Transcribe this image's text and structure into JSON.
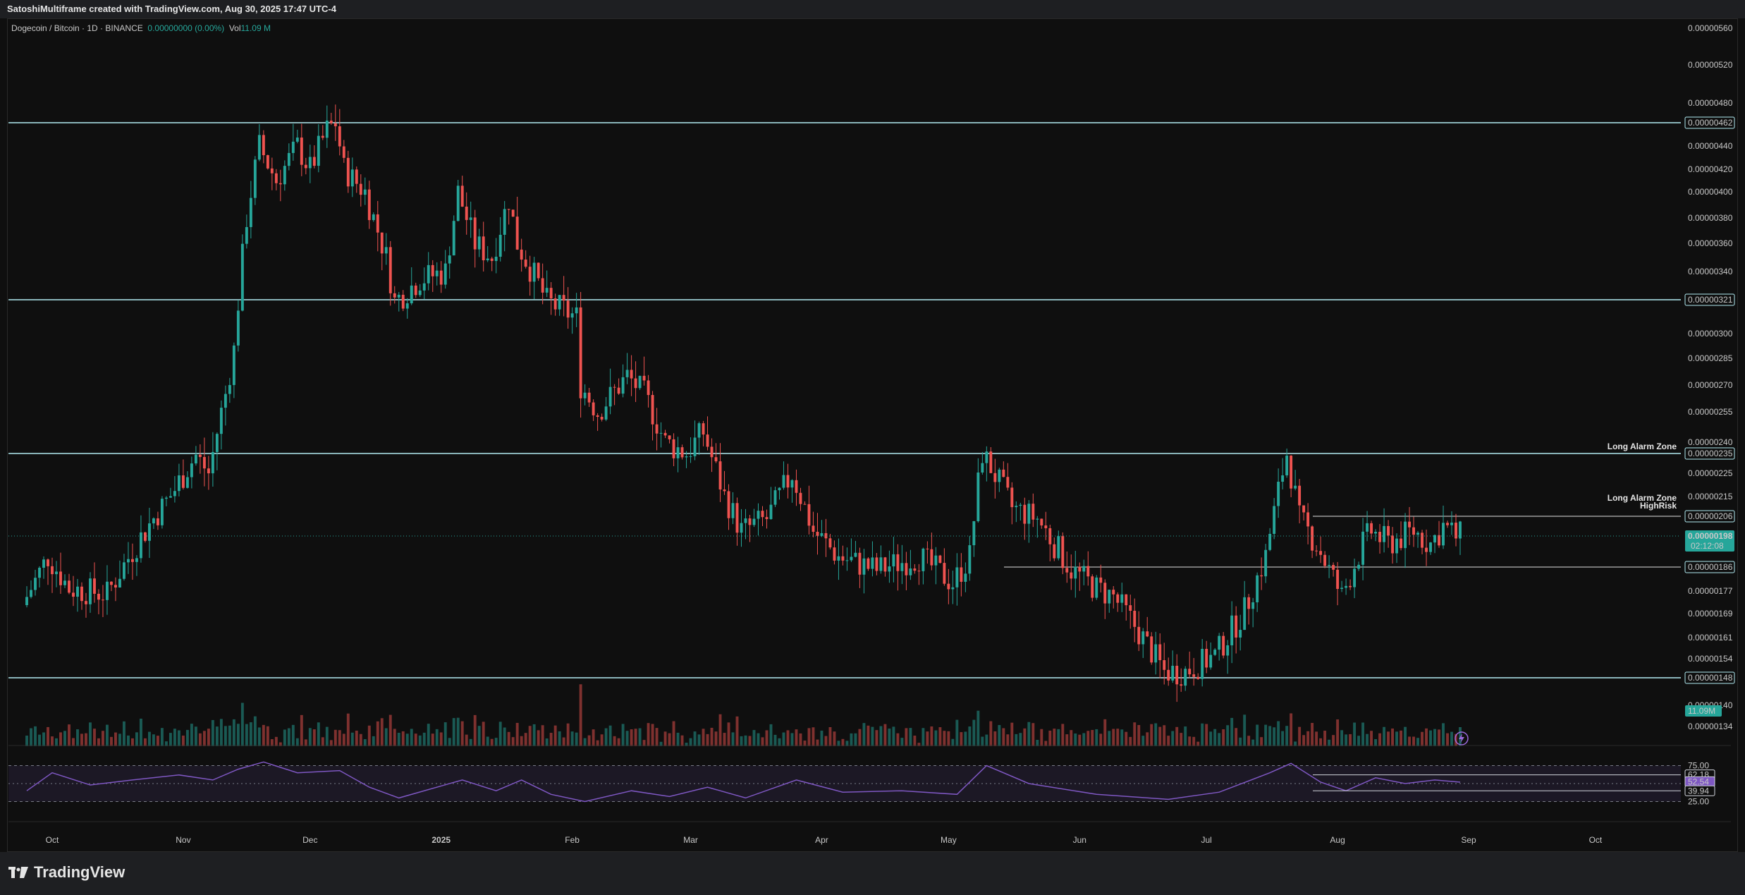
{
  "header": {
    "title": "SatoshiMultiframe created with TradingView.com, Aug 30, 2025 17:47 UTC-4"
  },
  "legend": {
    "symbol": "Dogecoin / Bitcoin · 1D · BINANCE",
    "change": "0.00000000 (0.00%)",
    "vol_label": "Vol",
    "vol_value": "11.09 M"
  },
  "footer": {
    "brand": "TradingView"
  },
  "colors": {
    "up": "#26a69a",
    "down": "#ef5350",
    "level": "#b2ebf2",
    "rsi": "#7e57c2"
  },
  "chart_data": {
    "type": "candlestick",
    "pair": "DOGE/BTC",
    "timeframe": "1D",
    "exchange": "BINANCE",
    "y_axis_ticks": [
      "0.00000560",
      "0.00000520",
      "0.00000480",
      "0.00000440",
      "0.00000420",
      "0.00000400",
      "0.00000380",
      "0.00000360",
      "0.00000340",
      "0.00000300",
      "0.00000285",
      "0.00000270",
      "0.00000255",
      "0.00000240",
      "0.00000225",
      "0.00000215",
      "0.00000177",
      "0.00000169",
      "0.00000161",
      "0.00000154",
      "0.00000140",
      "0.00000134"
    ],
    "x_axis_ticks": [
      "Oct",
      "Nov",
      "Dec",
      "2025",
      "Feb",
      "Mar",
      "Apr",
      "May",
      "Jun",
      "Jul",
      "Aug",
      "Sep",
      "Oct"
    ],
    "horizontal_levels": [
      {
        "price": "0.00000462",
        "value": 4.62e-06,
        "label": ""
      },
      {
        "price": "0.00000321",
        "value": 3.21e-06,
        "label": ""
      },
      {
        "price": "0.00000235",
        "value": 2.35e-06,
        "label": "Long Alarm Zone"
      },
      {
        "price": "0.00000206",
        "value": 2.06e-06,
        "label": "Long Alarm Zone HighRisk",
        "label_lines": [
          "Long Alarm Zone",
          "HighRisk"
        ]
      },
      {
        "price": "0.00000186",
        "value": 1.86e-06,
        "label": ""
      },
      {
        "price": "0.00000148",
        "value": 1.48e-06,
        "label": ""
      }
    ],
    "last_price": {
      "price": "0.00000198",
      "countdown": "02:12:08"
    },
    "volume_tag": "11.09M",
    "price_path": [
      [
        "2024-09-25",
        1.72e-06
      ],
      [
        "2024-10-01",
        1.9e-06
      ],
      [
        "2024-10-06",
        1.78e-06
      ],
      [
        "2024-10-15",
        1.76e-06
      ],
      [
        "2024-10-22",
        1.95e-06
      ],
      [
        "2024-10-31",
        2.18e-06
      ],
      [
        "2024-11-05",
        2.34e-06
      ],
      [
        "2024-11-08",
        2.25e-06
      ],
      [
        "2024-11-12",
        2.65e-06
      ],
      [
        "2024-11-14",
        2.9e-06
      ],
      [
        "2024-11-17",
        3.8e-06
      ],
      [
        "2024-11-20",
        4.4e-06
      ],
      [
        "2024-11-24",
        4.1e-06
      ],
      [
        "2024-11-29",
        4.4e-06
      ],
      [
        "2024-12-02",
        4.2e-06
      ],
      [
        "2024-12-06",
        4.55e-06
      ],
      [
        "2024-12-08",
        4.62e-06
      ],
      [
        "2024-12-10",
        4.2e-06
      ],
      [
        "2024-12-15",
        4e-06
      ],
      [
        "2024-12-20",
        3.5e-06
      ],
      [
        "2024-12-22",
        3.2e-06
      ],
      [
        "2024-12-28",
        3.35e-06
      ],
      [
        "2025-01-03",
        3.4e-06
      ],
      [
        "2025-01-06",
        4e-06
      ],
      [
        "2025-01-10",
        3.6e-06
      ],
      [
        "2025-01-14",
        3.5e-06
      ],
      [
        "2025-01-18",
        3.95e-06
      ],
      [
        "2025-01-20",
        3.6e-06
      ],
      [
        "2025-01-27",
        3.2e-06
      ],
      [
        "2025-02-03",
        3.1e-06
      ],
      [
        "2025-02-04",
        2.7e-06
      ],
      [
        "2025-02-08",
        2.55e-06
      ],
      [
        "2025-02-15",
        2.75e-06
      ],
      [
        "2025-02-19",
        2.65e-06
      ],
      [
        "2025-02-24",
        2.4e-06
      ],
      [
        "2025-03-01",
        2.35e-06
      ],
      [
        "2025-03-05",
        2.45e-06
      ],
      [
        "2025-03-10",
        2.15e-06
      ],
      [
        "2025-03-14",
        2e-06
      ],
      [
        "2025-03-20",
        2.05e-06
      ],
      [
        "2025-03-26",
        2.25e-06
      ],
      [
        "2025-03-31",
        2e-06
      ],
      [
        "2025-04-06",
        1.9e-06
      ],
      [
        "2025-04-15",
        1.85e-06
      ],
      [
        "2025-04-25",
        1.9e-06
      ],
      [
        "2025-05-03",
        1.8e-06
      ],
      [
        "2025-05-07",
        1.9e-06
      ],
      [
        "2025-05-10",
        2.35e-06
      ],
      [
        "2025-05-17",
        2.1e-06
      ],
      [
        "2025-05-23",
        2.05e-06
      ],
      [
        "2025-05-31",
        1.85e-06
      ],
      [
        "2025-06-06",
        1.78e-06
      ],
      [
        "2025-06-10",
        1.75e-06
      ],
      [
        "2025-06-15",
        1.65e-06
      ],
      [
        "2025-06-22",
        1.5e-06
      ],
      [
        "2025-06-27",
        1.5e-06
      ],
      [
        "2025-07-04",
        1.55e-06
      ],
      [
        "2025-07-11",
        1.7e-06
      ],
      [
        "2025-07-16",
        1.9e-06
      ],
      [
        "2025-07-21",
        2.35e-06
      ],
      [
        "2025-07-24",
        2.05e-06
      ],
      [
        "2025-07-28",
        1.95e-06
      ],
      [
        "2025-08-03",
        1.75e-06
      ],
      [
        "2025-08-08",
        1.95e-06
      ],
      [
        "2025-08-10",
        2e-06
      ],
      [
        "2025-08-14",
        1.95e-06
      ],
      [
        "2025-08-20",
        2e-06
      ],
      [
        "2025-08-24",
        1.95e-06
      ],
      [
        "2025-08-27",
        2.02e-06
      ],
      [
        "2025-08-30",
        1.98e-06
      ]
    ],
    "rsi": {
      "levels": [
        75,
        25
      ],
      "tags": [
        "62.18",
        "52.54",
        "39.94"
      ],
      "path": [
        [
          "2024-09-25",
          40
        ],
        [
          "2024-10-01",
          65
        ],
        [
          "2024-10-10",
          48
        ],
        [
          "2024-10-20",
          55
        ],
        [
          "2024-10-31",
          62
        ],
        [
          "2024-11-08",
          55
        ],
        [
          "2024-11-14",
          70
        ],
        [
          "2024-11-20",
          80
        ],
        [
          "2024-11-28",
          65
        ],
        [
          "2024-12-08",
          68
        ],
        [
          "2024-12-15",
          45
        ],
        [
          "2024-12-22",
          30
        ],
        [
          "2025-01-06",
          55
        ],
        [
          "2025-01-14",
          40
        ],
        [
          "2025-01-20",
          55
        ],
        [
          "2025-01-27",
          35
        ],
        [
          "2025-02-04",
          25
        ],
        [
          "2025-02-15",
          40
        ],
        [
          "2025-02-24",
          32
        ],
        [
          "2025-03-05",
          45
        ],
        [
          "2025-03-14",
          30
        ],
        [
          "2025-03-26",
          55
        ],
        [
          "2025-04-06",
          38
        ],
        [
          "2025-04-20",
          40
        ],
        [
          "2025-05-03",
          35
        ],
        [
          "2025-05-10",
          75
        ],
        [
          "2025-05-20",
          50
        ],
        [
          "2025-06-05",
          35
        ],
        [
          "2025-06-22",
          28
        ],
        [
          "2025-07-04",
          38
        ],
        [
          "2025-07-16",
          65
        ],
        [
          "2025-07-21",
          78
        ],
        [
          "2025-07-28",
          52
        ],
        [
          "2025-08-03",
          40
        ],
        [
          "2025-08-10",
          58
        ],
        [
          "2025-08-17",
          50
        ],
        [
          "2025-08-24",
          55
        ],
        [
          "2025-08-30",
          52
        ]
      ]
    }
  }
}
